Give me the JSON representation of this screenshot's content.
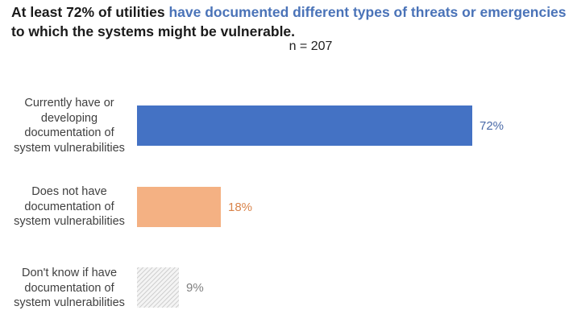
{
  "chart_data": {
    "type": "bar",
    "orientation": "horizontal",
    "title_parts": [
      {
        "text": "At least 72% of utilities ",
        "highlight": false
      },
      {
        "text": "have documented different types of threats or emergencies",
        "highlight": true
      },
      {
        "text": " to which the systems might be vulnerable.",
        "highlight": false
      }
    ],
    "subtitle": "n = 207",
    "categories": [
      "Currently have or developing documentation of system vulnerabilities",
      "Does not have documentation of system vulnerabilities",
      "Don't know if have documentation of system vulnerabilities"
    ],
    "category_lines": [
      [
        "Currently have or",
        "developing",
        "documentation of",
        "system vulnerabilities"
      ],
      [
        "Does not have",
        "documentation of",
        "system vulnerabilities"
      ],
      [
        "Don't know if have",
        "documentation of",
        "system vulnerabilities"
      ]
    ],
    "values": [
      72,
      18,
      9
    ],
    "value_labels": [
      "72%",
      "18%",
      "9%"
    ],
    "unit": "%",
    "colors": [
      "#4472c4",
      "#f4b183",
      "hatched-gray"
    ],
    "label_colors": [
      "#4a6aa8",
      "#d9834a",
      "#808080"
    ],
    "xlim": [
      0,
      72
    ],
    "grid": false,
    "axes_visible": false,
    "legend": "none"
  }
}
